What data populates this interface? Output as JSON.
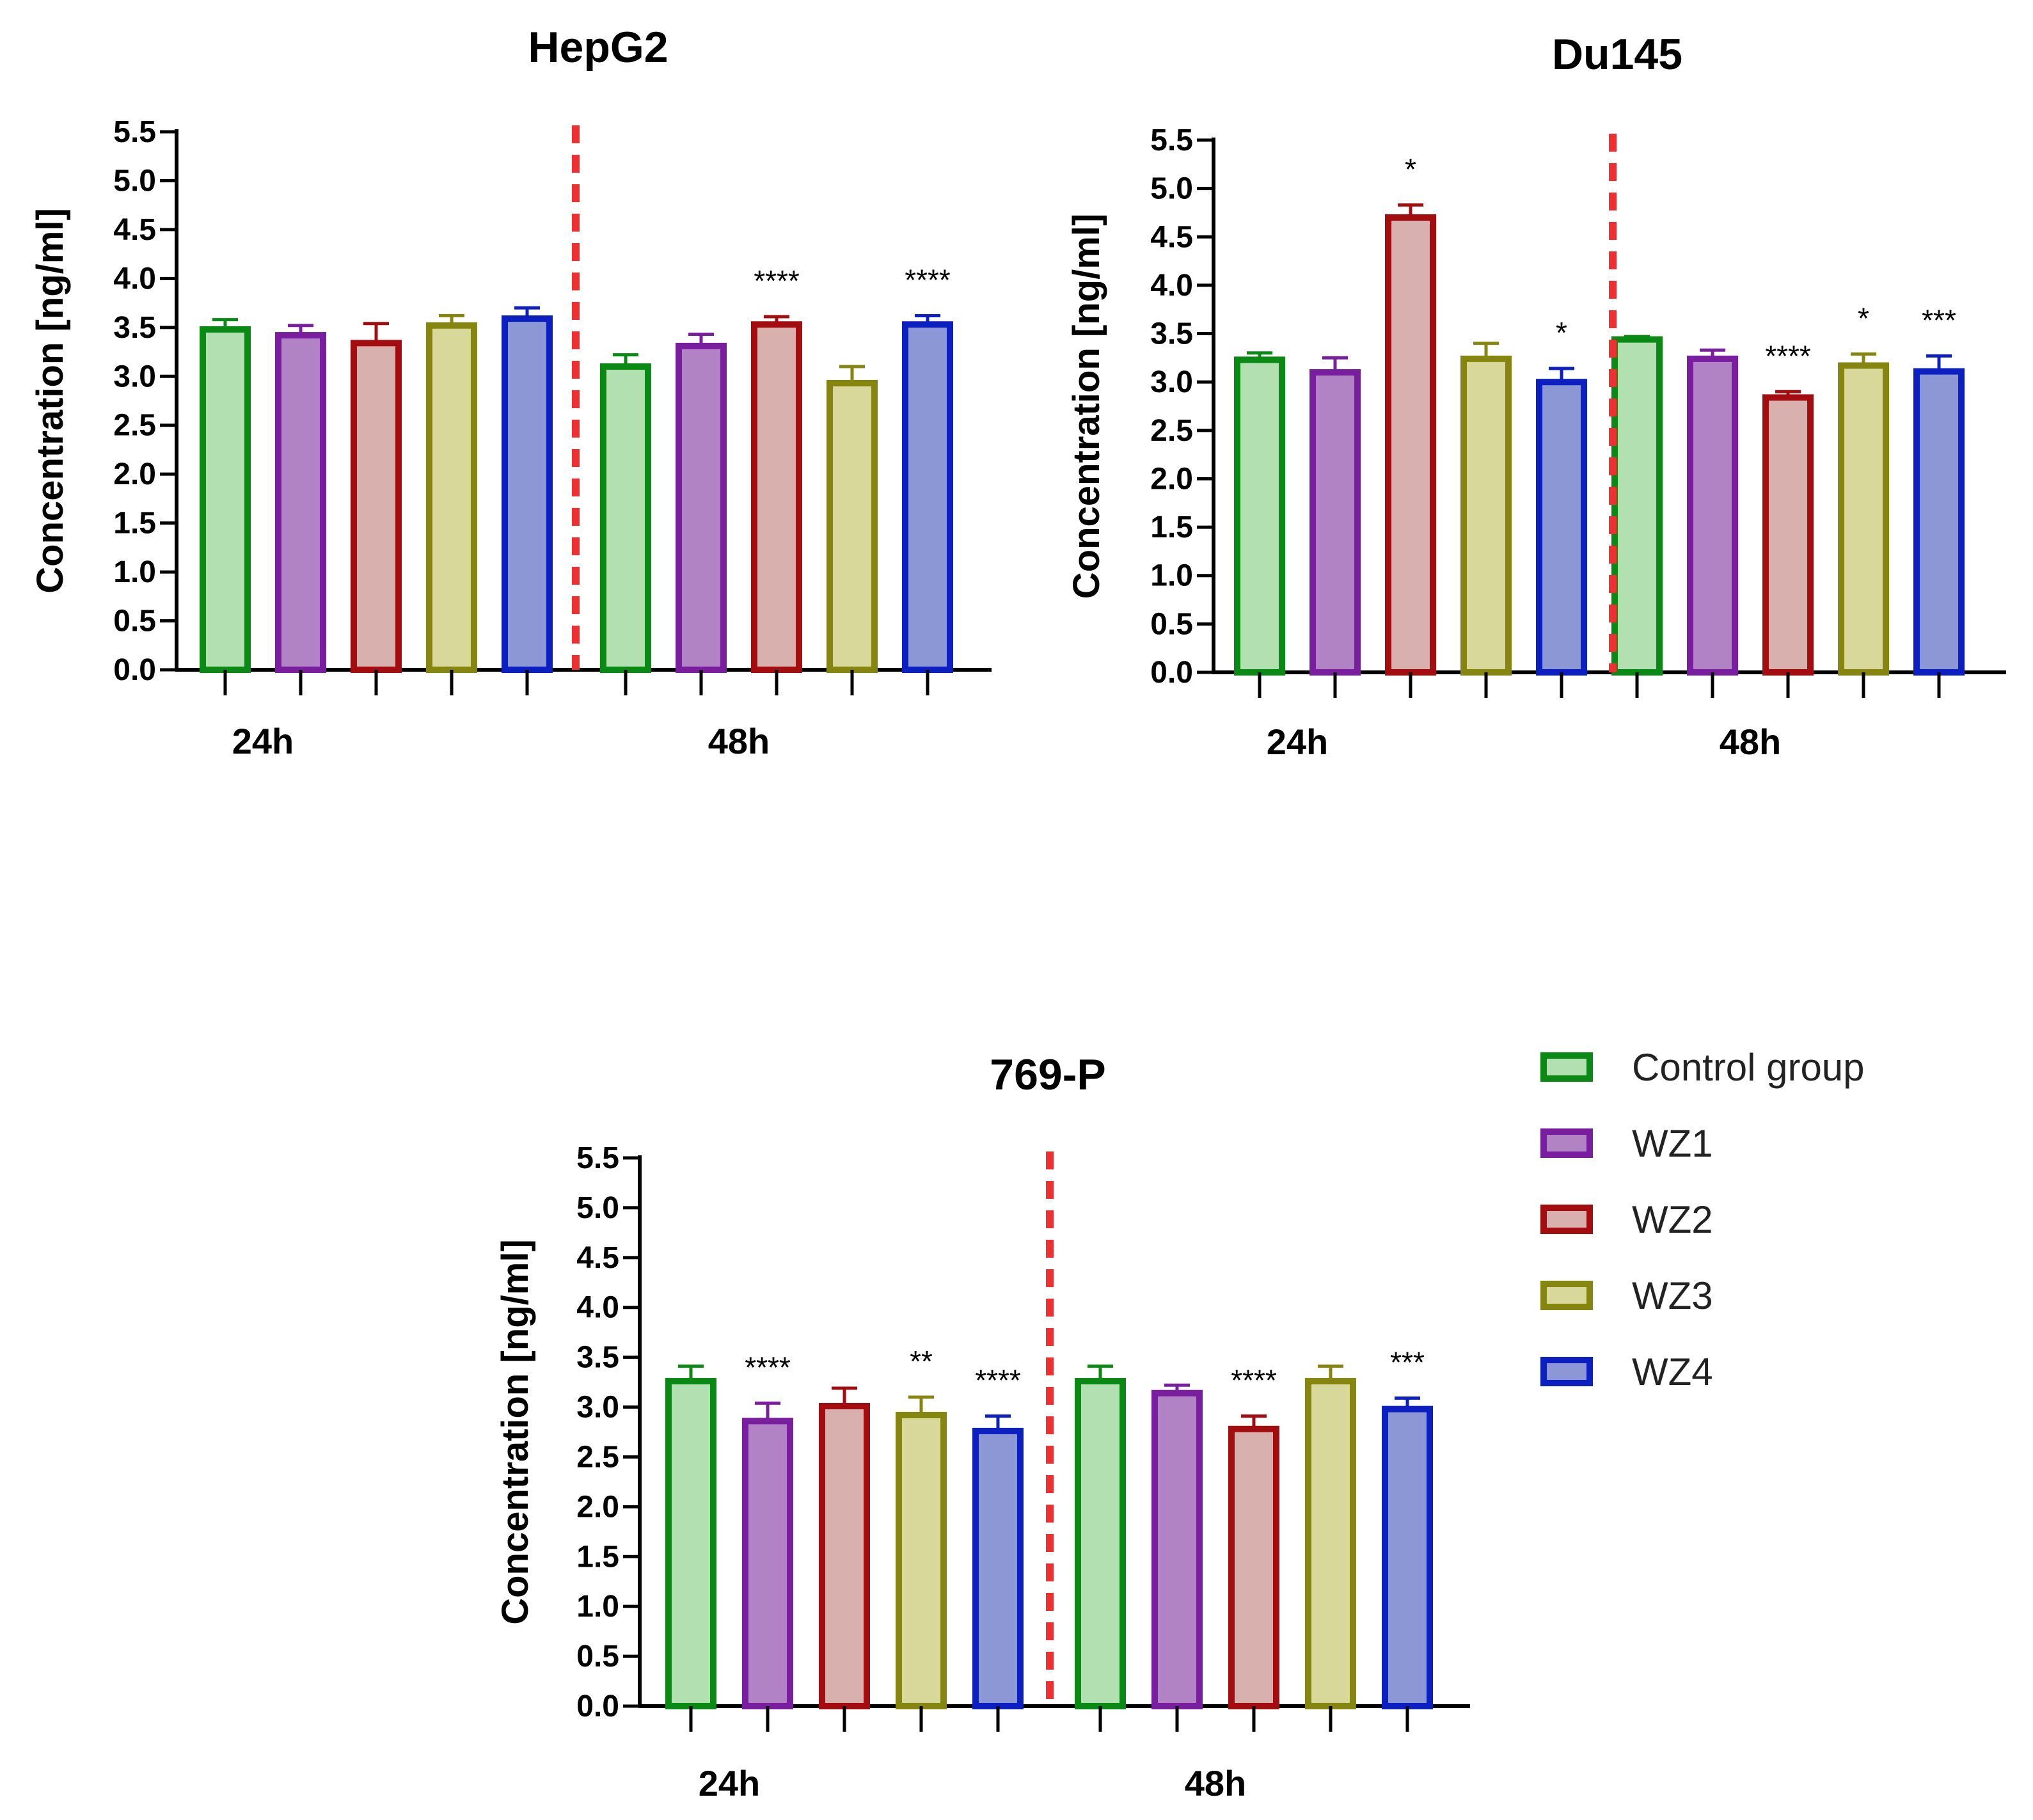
{
  "colors": {
    "Control group": {
      "stroke": "#0a8a14",
      "fill": "#b3e0b0"
    },
    "WZ1": {
      "stroke": "#7a1ea0",
      "fill": "#b183c4"
    },
    "WZ2": {
      "stroke": "#a30d10",
      "fill": "#d8b1ae"
    },
    "WZ3": {
      "stroke": "#858510",
      "fill": "#d7d89a"
    },
    "WZ4": {
      "stroke": "#0c1fc0",
      "fill": "#8c97d6"
    },
    "divider": "#ee3030"
  },
  "legend": {
    "entries": [
      "Control group",
      "WZ1",
      "WZ2",
      "WZ3",
      "WZ4"
    ]
  },
  "chart_data": [
    {
      "type": "bar",
      "title": "HepG2",
      "ylabel": "Concentration [ng/ml]",
      "ylim": [
        0,
        5.5
      ],
      "yticks": [
        "0.0",
        "0.5",
        "1.0",
        "1.5",
        "2.0",
        "2.5",
        "3.0",
        "3.5",
        "4.0",
        "4.5",
        "5.0",
        "5.5"
      ],
      "categories": [
        "24h",
        "48h"
      ],
      "series": [
        {
          "name": "Control group",
          "values": [
            3.48,
            3.1
          ],
          "errors": [
            0.1,
            0.12
          ],
          "significance": [
            "",
            ""
          ]
        },
        {
          "name": "WZ1",
          "values": [
            3.42,
            3.31
          ],
          "errors": [
            0.1,
            0.12
          ],
          "significance": [
            "",
            ""
          ]
        },
        {
          "name": "WZ2",
          "values": [
            3.34,
            3.53
          ],
          "errors": [
            0.2,
            0.08
          ],
          "significance": [
            "",
            "****"
          ]
        },
        {
          "name": "WZ3",
          "values": [
            3.52,
            2.93
          ],
          "errors": [
            0.1,
            0.17
          ],
          "significance": [
            "",
            ""
          ]
        },
        {
          "name": "WZ4",
          "values": [
            3.59,
            3.53
          ],
          "errors": [
            0.11,
            0.09
          ],
          "significance": [
            "",
            "****"
          ]
        }
      ]
    },
    {
      "type": "bar",
      "title": "Du145",
      "ylabel": "Concentration [ng/ml]",
      "ylim": [
        0,
        5.5
      ],
      "yticks": [
        "0.0",
        "0.5",
        "1.0",
        "1.5",
        "2.0",
        "2.5",
        "3.0",
        "3.5",
        "4.0",
        "4.5",
        "5.0",
        "5.5"
      ],
      "categories": [
        "24h",
        "48h"
      ],
      "series": [
        {
          "name": "Control group",
          "values": [
            3.23,
            3.44
          ],
          "errors": [
            0.07,
            0.03
          ],
          "significance": [
            "",
            ""
          ]
        },
        {
          "name": "WZ1",
          "values": [
            3.1,
            3.24
          ],
          "errors": [
            0.15,
            0.09
          ],
          "significance": [
            "",
            ""
          ]
        },
        {
          "name": "WZ2",
          "values": [
            4.7,
            2.84
          ],
          "errors": [
            0.13,
            0.06
          ],
          "significance": [
            "*",
            "****"
          ]
        },
        {
          "name": "WZ3",
          "values": [
            3.24,
            3.17
          ],
          "errors": [
            0.16,
            0.12
          ],
          "significance": [
            "",
            "*"
          ]
        },
        {
          "name": "WZ4",
          "values": [
            3.0,
            3.11
          ],
          "errors": [
            0.14,
            0.16
          ],
          "significance": [
            "*",
            "***"
          ]
        }
      ]
    },
    {
      "type": "bar",
      "title": "769-P",
      "ylabel": "Concentration [ng/ml]",
      "ylim": [
        0,
        5.5
      ],
      "yticks": [
        "0.0",
        "0.5",
        "1.0",
        "1.5",
        "2.0",
        "2.5",
        "3.0",
        "3.5",
        "4.0",
        "4.5",
        "5.0",
        "5.5"
      ],
      "categories": [
        "24h",
        "48h"
      ],
      "series": [
        {
          "name": "Control group",
          "values": [
            3.26,
            3.26
          ],
          "errors": [
            0.15,
            0.15
          ],
          "significance": [
            "",
            ""
          ]
        },
        {
          "name": "WZ1",
          "values": [
            2.86,
            3.14
          ],
          "errors": [
            0.18,
            0.08
          ],
          "significance": [
            "****",
            ""
          ]
        },
        {
          "name": "WZ2",
          "values": [
            3.01,
            2.78
          ],
          "errors": [
            0.18,
            0.13
          ],
          "significance": [
            "",
            "****"
          ]
        },
        {
          "name": "WZ3",
          "values": [
            2.92,
            3.26
          ],
          "errors": [
            0.18,
            0.15
          ],
          "significance": [
            "**",
            ""
          ]
        },
        {
          "name": "WZ4",
          "values": [
            2.76,
            2.98
          ],
          "errors": [
            0.15,
            0.11
          ],
          "significance": [
            "****",
            "***"
          ]
        }
      ]
    }
  ]
}
